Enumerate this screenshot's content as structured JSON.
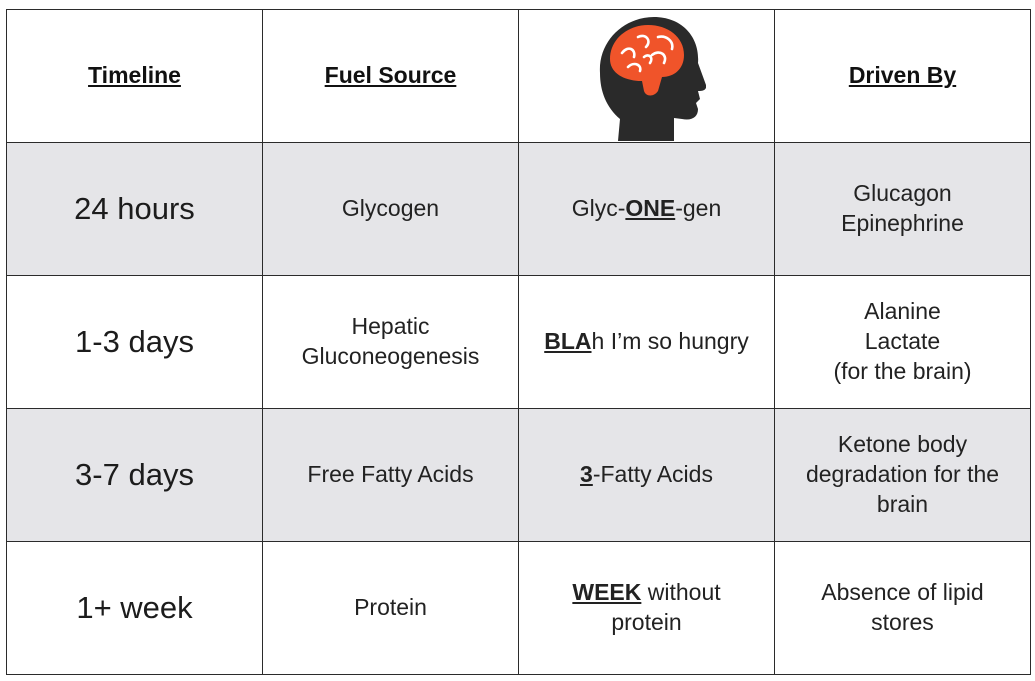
{
  "header": {
    "timeline": "Timeline",
    "fuel_source": "Fuel Source",
    "mnemonic_icon": "brain-head-icon",
    "driven_by": "Driven By"
  },
  "rows": [
    {
      "timeline": "24 hours",
      "fuel_source": [
        "Glycogen"
      ],
      "mnemonic": {
        "pre": "Glyc-",
        "key": "ONE",
        "post": "-gen",
        "line2": ""
      },
      "driven_by": [
        "Glucagon",
        "Epinephrine"
      ]
    },
    {
      "timeline": "1-3 days",
      "fuel_source": [
        "Hepatic",
        "Gluconeogenesis"
      ],
      "mnemonic": {
        "pre": "",
        "key": "BLA",
        "post": "h I’m so hungry",
        "line2": ""
      },
      "driven_by": [
        "Alanine",
        "Lactate",
        "(for the brain)"
      ]
    },
    {
      "timeline": "3-7 days",
      "fuel_source": [
        "Free Fatty Acids"
      ],
      "mnemonic": {
        "pre": "",
        "key": "3",
        "post": "-Fatty Acids",
        "line2": ""
      },
      "driven_by": [
        "Ketone body",
        "degradation for the",
        "brain"
      ]
    },
    {
      "timeline": "1+ week",
      "fuel_source": [
        "Protein"
      ],
      "mnemonic": {
        "pre": "",
        "key": "WEEK",
        "post": " without",
        "line2": "protein"
      },
      "driven_by": [
        "Absence of lipid",
        "stores"
      ]
    }
  ],
  "colors": {
    "shaded_row": "#e5e5e8",
    "border": "#2b2b2b",
    "brain": "#f0542a",
    "head": "#2a2a2a"
  }
}
